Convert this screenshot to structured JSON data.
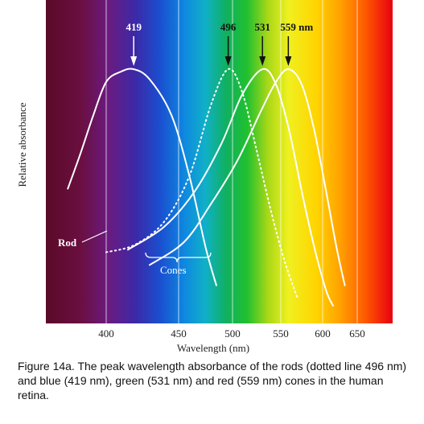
{
  "caption": "Figure 14a. The peak wavelength absorbance of the rods (dotted line 496 nm) and blue (419 nm), green (531 nm) and red (559 nm) cones in the human retina.",
  "chart_data": {
    "type": "line",
    "title": "",
    "xlabel": "Wavelength (nm)",
    "ylabel": "Relative absorbance",
    "xlim": [
      350,
      680
    ],
    "ylim": [
      0,
      1
    ],
    "x_ticks": [
      400,
      450,
      500,
      550,
      600,
      650
    ],
    "grid": "vertical lines at tick positions",
    "background": "visible light spectrum",
    "series": [
      {
        "x": [
          355,
          370,
          385,
          400,
          410,
          419,
          430,
          445,
          460,
          475,
          485
        ],
        "y": [
          0.53,
          0.67,
          0.82,
          0.95,
          0.99,
          1.0,
          0.96,
          0.82,
          0.58,
          0.3,
          0.15
        ],
        "style": "solid"
      },
      {
        "x": [
          400,
          420,
          440,
          460,
          480,
          496,
          510,
          525,
          540,
          555,
          570
        ],
        "y": [
          0.28,
          0.31,
          0.4,
          0.58,
          0.86,
          1.0,
          0.91,
          0.68,
          0.44,
          0.24,
          0.1
        ],
        "style": "dotted"
      },
      {
        "x": [
          415,
          440,
          465,
          490,
          510,
          531,
          545,
          560,
          575,
          590,
          605,
          615
        ],
        "y": [
          0.29,
          0.38,
          0.52,
          0.71,
          0.9,
          1.0,
          0.94,
          0.76,
          0.52,
          0.3,
          0.13,
          0.07
        ],
        "style": "solid"
      },
      {
        "x": [
          430,
          455,
          480,
          505,
          530,
          545,
          559,
          575,
          590,
          605,
          620,
          632
        ],
        "y": [
          0.23,
          0.32,
          0.47,
          0.64,
          0.84,
          0.95,
          1.0,
          0.94,
          0.76,
          0.52,
          0.3,
          0.15
        ],
        "style": "solid"
      }
    ],
    "peak_labels": [
      {
        "text": "419",
        "x": 419
      },
      {
        "text": "496",
        "x": 496
      },
      {
        "text": "531",
        "x": 531
      },
      {
        "text": "559 nm",
        "x": 559
      }
    ],
    "annotations": [
      {
        "text": "Rod",
        "target": "dotted curve"
      },
      {
        "text": "Cones",
        "target": "solid curves"
      }
    ]
  }
}
